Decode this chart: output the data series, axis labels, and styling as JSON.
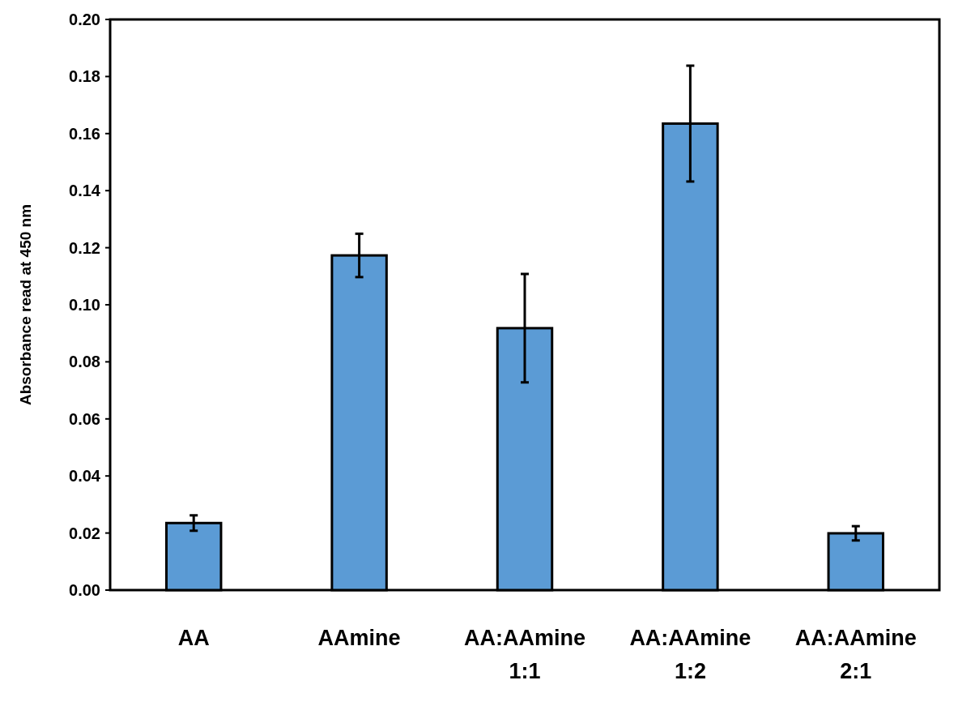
{
  "chart_data": {
    "type": "bar",
    "ylabel": "Absorbance read at 450 nm",
    "categories": [
      "AA",
      "AAmine",
      "AA:AAmine 1:1",
      "AA:AAmine 1:2",
      "AA:AAmine 2:1"
    ],
    "values": [
      0.0235,
      0.1173,
      0.0918,
      0.1635,
      0.0199
    ],
    "errors": [
      0.0027,
      0.0076,
      0.019,
      0.0203,
      0.0025
    ],
    "color": "#5b9bd5",
    "ylim": [
      0,
      0.2
    ],
    "yticks": [
      {
        "value": 0,
        "label": "0.00"
      },
      {
        "value": 0.02,
        "label": "0.02"
      },
      {
        "value": 0.04,
        "label": "0.04"
      },
      {
        "value": 0.06,
        "label": "0.06"
      },
      {
        "value": 0.08,
        "label": "0.08"
      },
      {
        "value": 0.1,
        "label": "0.10"
      },
      {
        "value": 0.12,
        "label": "0.12"
      },
      {
        "value": 0.14,
        "label": "0.14"
      },
      {
        "value": 0.16,
        "label": "0.16"
      },
      {
        "value": 0.18,
        "label": "0.18"
      },
      {
        "value": 0.2,
        "label": "0.20"
      }
    ],
    "grid": false
  }
}
